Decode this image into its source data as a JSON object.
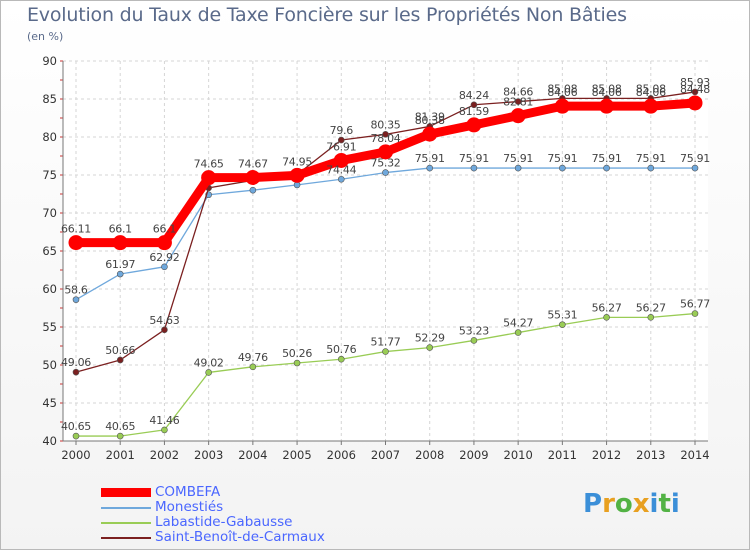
{
  "title": "Evolution du Taux de Taxe Foncière sur les Propriétés Non Bâties",
  "subtitle": "(en %)",
  "logo_text": "Proxiti",
  "chart_data": {
    "type": "line",
    "title": "Evolution du Taux de Taxe Foncière sur les Propriétés Non Bâties",
    "ylabel": "(en %)",
    "xlabel": "",
    "ylim": [
      40,
      90
    ],
    "yticks": [
      40,
      45,
      50,
      55,
      60,
      65,
      70,
      75,
      80,
      85,
      90
    ],
    "x": [
      "2000",
      "2001",
      "2002",
      "2003",
      "2004",
      "2005",
      "2006",
      "2007",
      "2008",
      "2009",
      "2010",
      "2011",
      "2012",
      "2013",
      "2014"
    ],
    "grid": true,
    "legend_position": "bottom-left",
    "series": [
      {
        "name": "COMBEFA",
        "color": "#ff0000",
        "values": [
          66.11,
          66.1,
          66.1,
          74.65,
          74.67,
          74.95,
          76.91,
          78.04,
          80.38,
          81.59,
          82.81,
          84.06,
          84.06,
          84.06,
          84.48
        ],
        "labels": [
          "66.11",
          "66.1",
          "66.1",
          "74.65",
          "74.67",
          "74.95",
          "76.91",
          "78.04",
          "80.38",
          "81.59",
          "82.81",
          "84.06",
          "84.06",
          "84.06",
          "84.48"
        ]
      },
      {
        "name": "Monestiés",
        "color": "#6fa8dc",
        "values": [
          58.6,
          61.97,
          62.92,
          72.4,
          73.0,
          73.7,
          74.44,
          75.32,
          75.91,
          75.91,
          75.91,
          75.91,
          75.91,
          75.91,
          75.91
        ],
        "labels": [
          "58.6",
          "61.97",
          "62.92",
          "",
          "",
          "",
          "74.44",
          "75.32",
          "75.91",
          "75.91",
          "75.91",
          "75.91",
          "75.91",
          "75.91",
          "75.91"
        ]
      },
      {
        "name": "Labastide-Gabausse",
        "color": "#99cc55",
        "values": [
          40.65,
          40.65,
          41.46,
          49.02,
          49.76,
          50.26,
          50.76,
          51.77,
          52.29,
          53.23,
          54.27,
          55.31,
          56.27,
          56.27,
          56.77
        ],
        "labels": [
          "40.65",
          "40.65",
          "41.46",
          "49.02",
          "49.76",
          "50.26",
          "50.76",
          "51.77",
          "52.29",
          "53.23",
          "54.27",
          "55.31",
          "56.27",
          "56.27",
          "56.77"
        ]
      },
      {
        "name": "Saint-Benoît-de-Carmaux",
        "color": "#7b2020",
        "values": [
          49.06,
          50.66,
          54.63,
          73.3,
          74.3,
          75.05,
          79.6,
          80.35,
          81.39,
          84.24,
          84.66,
          85.08,
          85.08,
          85.08,
          85.93
        ],
        "labels": [
          "49.06",
          "50.66",
          "54.63",
          "",
          "",
          "",
          "79.6",
          "80.35",
          "81.39",
          "84.24",
          "84.66",
          "85.08",
          "85.08",
          "85.08",
          "85.93"
        ]
      }
    ]
  }
}
